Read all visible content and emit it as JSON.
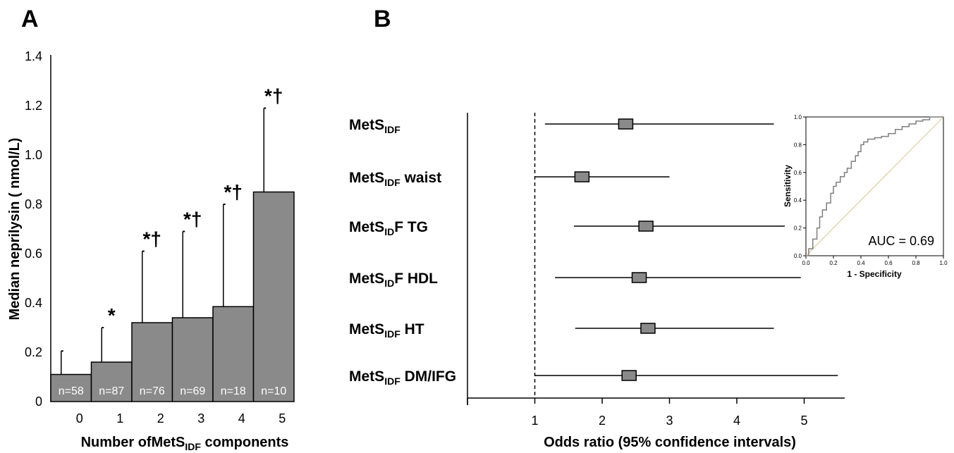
{
  "panels": {
    "a": "A",
    "b": "B"
  },
  "chart_data": [
    {
      "type": "bar",
      "panel": "A",
      "ylabel": "Median neprilysin (  nmol/L)",
      "xlabel_main": "Number of",
      "xlabel_mets": "MetS",
      "xlabel_sub": "IDF",
      "xlabel_end": " components",
      "ylim": [
        0,
        1.4
      ],
      "yticks": [
        "0",
        "0.2",
        "0.4",
        "0.6",
        "0.8",
        "1.0",
        "1.2",
        "1.4"
      ],
      "categories": [
        "0",
        "1",
        "2",
        "3",
        "4",
        "5"
      ],
      "values": [
        0.11,
        0.16,
        0.32,
        0.34,
        0.385,
        0.85
      ],
      "error_upper": [
        0.205,
        0.3,
        0.61,
        0.69,
        0.8,
        1.19
      ],
      "n_labels": [
        "n=58",
        "n=87",
        "n=76",
        "n=69",
        "n=18",
        "n=10"
      ],
      "significance": [
        "",
        "*",
        "*†",
        "*†",
        "*†",
        "*†"
      ],
      "bar_color": "#8a8a8a"
    },
    {
      "type": "forest",
      "panel": "B",
      "xlabel": "Odds ratio (95% confidence intervals)",
      "xlim": [
        0,
        5.5
      ],
      "xticks": [
        "1",
        "2",
        "3",
        "4",
        "5"
      ],
      "reference_line": 1,
      "rows": [
        {
          "label_main": "MetS",
          "label_sub": "IDF",
          "label_rest": "",
          "or": 2.35,
          "lower": 1.15,
          "upper": 4.55
        },
        {
          "label_main": "MetS",
          "label_sub": "IDF",
          "label_rest": " waist",
          "or": 1.7,
          "lower": 1.0,
          "upper": 3.0
        },
        {
          "label_main": "MetS",
          "label_sub": "ID",
          "label_rest": "F TG",
          "or": 2.65,
          "lower": 1.58,
          "upper": 5.5
        },
        {
          "label_main": "MetS",
          "label_sub": "ID",
          "label_rest": "F HDL",
          "or": 2.55,
          "lower": 1.3,
          "upper": 4.95
        },
        {
          "label_main": "MetS",
          "label_sub": "IDF",
          "label_rest": " HT",
          "or": 2.68,
          "lower": 1.6,
          "upper": 4.55
        },
        {
          "label_main": "MetS",
          "label_sub": "IDF",
          "label_rest": " DM/IFG",
          "or": 2.4,
          "lower": 1.0,
          "upper": 5.5
        }
      ],
      "marker_color": "#8a8a8a"
    },
    {
      "type": "line",
      "panel": "B-inset",
      "xlabel": "1 - Specificity",
      "ylabel": "Sensitivity",
      "xlim": [
        0,
        1
      ],
      "ylim": [
        0,
        1
      ],
      "xticks": [
        "0.0",
        "0.2",
        "0.4",
        "0.6",
        "0.8",
        "1.0"
      ],
      "yticks": [
        "0.0",
        "0.2",
        "0.4",
        "0.6",
        "0.8",
        "1.0"
      ],
      "annotation": "AUC = 0.69",
      "series": [
        {
          "x": [
            0.0,
            0.02,
            0.05,
            0.08,
            0.1,
            0.12,
            0.15,
            0.18,
            0.2,
            0.22,
            0.25,
            0.28,
            0.3,
            0.33,
            0.36,
            0.38,
            0.4,
            0.42,
            0.45,
            0.48,
            0.5,
            0.55,
            0.6,
            0.65,
            0.7,
            0.75,
            0.8,
            0.85,
            0.9,
            0.93,
            1.0
          ],
          "y": [
            0.0,
            0.05,
            0.12,
            0.2,
            0.28,
            0.33,
            0.38,
            0.45,
            0.5,
            0.53,
            0.57,
            0.6,
            0.63,
            0.68,
            0.72,
            0.75,
            0.8,
            0.82,
            0.84,
            0.84,
            0.85,
            0.86,
            0.88,
            0.91,
            0.93,
            0.95,
            0.97,
            0.98,
            1.0,
            1.0,
            1.0
          ]
        },
        {
          "x": [
            0,
            1
          ],
          "y": [
            0,
            1
          ]
        }
      ],
      "roc_color": "#7f7f7f",
      "diagonal_color": "#e0cc9a"
    }
  ]
}
